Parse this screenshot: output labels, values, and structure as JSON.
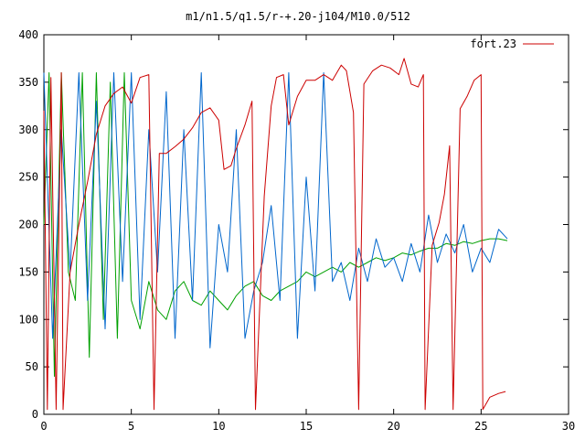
{
  "chart_data": {
    "type": "line",
    "title": "m1/n1.5/q1.5/r-+.20-j104/M10.0/512",
    "xlabel": "",
    "ylabel": "",
    "xlim": [
      0,
      30
    ],
    "ylim": [
      0,
      400
    ],
    "x_ticks": [
      0,
      5,
      10,
      15,
      20,
      25,
      30
    ],
    "y_ticks": [
      0,
      50,
      100,
      150,
      200,
      250,
      300,
      350,
      400
    ],
    "x_tick_labels": [
      "0",
      "5",
      "10",
      "15",
      "20",
      "25",
      "30"
    ],
    "y_tick_labels": [
      "0",
      "50",
      "100",
      "150",
      "200",
      "250",
      "300",
      "350",
      "400"
    ],
    "grid": false,
    "legend_position": "top-right",
    "legend": [
      {
        "label": "fort.23",
        "color": "#cc0000"
      }
    ],
    "series": [
      {
        "name": "fort.23",
        "color": "#cc0000",
        "x": [
          0,
          0.2,
          0.4,
          0.7,
          1.0,
          1.1,
          1.5,
          2.0,
          2.5,
          3.0,
          3.5,
          4.0,
          4.5,
          5.0,
          5.5,
          6.0,
          6.3,
          6.6,
          7.0,
          7.5,
          8.0,
          8.5,
          9.0,
          9.5,
          10.0,
          10.3,
          10.7,
          11.0,
          11.5,
          11.9,
          12.1,
          12.6,
          13.0,
          13.3,
          13.7,
          14.0,
          14.5,
          15.0,
          15.5,
          16.0,
          16.5,
          17.0,
          17.3,
          17.7,
          18.0,
          18.3,
          18.8,
          19.3,
          19.8,
          20.3,
          20.6,
          21.0,
          21.4,
          21.7,
          21.8,
          22.2,
          22.6,
          22.9,
          23.2,
          23.4,
          23.8,
          24.2,
          24.6,
          25.0,
          25.1,
          25.5,
          26.0,
          26.4
        ],
        "y": [
          320,
          5,
          355,
          5,
          360,
          5,
          150,
          200,
          245,
          295,
          325,
          338,
          345,
          328,
          355,
          358,
          5,
          275,
          275,
          282,
          290,
          302,
          318,
          323,
          310,
          258,
          262,
          280,
          305,
          330,
          5,
          230,
          325,
          355,
          358,
          305,
          335,
          352,
          352,
          358,
          352,
          368,
          362,
          318,
          5,
          348,
          362,
          368,
          365,
          358,
          375,
          348,
          345,
          358,
          5,
          178,
          202,
          232,
          283,
          5,
          322,
          335,
          352,
          358,
          5,
          18,
          22,
          24
        ]
      },
      {
        "name": "",
        "color": "#0066cc",
        "x": [
          0,
          0.5,
          1.0,
          1.5,
          2.0,
          2.5,
          3.0,
          3.5,
          4.0,
          4.5,
          5.0,
          5.5,
          6.0,
          6.5,
          7.0,
          7.5,
          8.0,
          8.5,
          9.0,
          9.5,
          10.0,
          10.5,
          11.0,
          11.5,
          12.0,
          12.5,
          13.0,
          13.5,
          14.0,
          14.5,
          15.0,
          15.5,
          16.0,
          16.5,
          17.0,
          17.5,
          18.0,
          18.5,
          19.0,
          19.5,
          20.0,
          20.5,
          21.0,
          21.5,
          22.0,
          22.5,
          23.0,
          23.5,
          24.0,
          24.5,
          25.0,
          25.5,
          26.0,
          26.5
        ],
        "y": [
          360,
          80,
          300,
          150,
          360,
          120,
          330,
          90,
          360,
          140,
          360,
          100,
          300,
          150,
          340,
          80,
          300,
          120,
          360,
          70,
          200,
          150,
          300,
          80,
          130,
          160,
          220,
          120,
          360,
          80,
          250,
          130,
          360,
          140,
          160,
          120,
          175,
          140,
          185,
          155,
          165,
          140,
          180,
          150,
          210,
          160,
          190,
          170,
          200,
          150,
          175,
          160,
          195,
          185
        ]
      },
      {
        "name": "",
        "color": "#00a000",
        "x": [
          0,
          0.3,
          0.6,
          1.0,
          1.4,
          1.8,
          2.2,
          2.6,
          3.0,
          3.4,
          3.8,
          4.2,
          4.6,
          5.0,
          5.5,
          6.0,
          6.5,
          7.0,
          7.5,
          8.0,
          8.5,
          9.0,
          9.5,
          10.0,
          10.5,
          11.0,
          11.5,
          12.0,
          12.5,
          13.0,
          13.5,
          14.0,
          14.5,
          15.0,
          15.5,
          16.0,
          16.5,
          17.0,
          17.5,
          18.0,
          18.5,
          19.0,
          19.5,
          20.0,
          20.5,
          21.0,
          21.5,
          22.0,
          22.5,
          23.0,
          23.5,
          24.0,
          24.5,
          25.0,
          25.5,
          26.0,
          26.5
        ],
        "y": [
          200,
          360,
          40,
          360,
          150,
          120,
          360,
          60,
          360,
          100,
          350,
          80,
          360,
          120,
          90,
          140,
          110,
          100,
          130,
          140,
          120,
          115,
          130,
          120,
          110,
          125,
          135,
          140,
          125,
          120,
          130,
          135,
          140,
          150,
          145,
          150,
          155,
          150,
          160,
          155,
          160,
          165,
          162,
          165,
          170,
          168,
          172,
          175,
          175,
          180,
          178,
          182,
          180,
          183,
          185,
          185,
          183
        ]
      }
    ]
  }
}
